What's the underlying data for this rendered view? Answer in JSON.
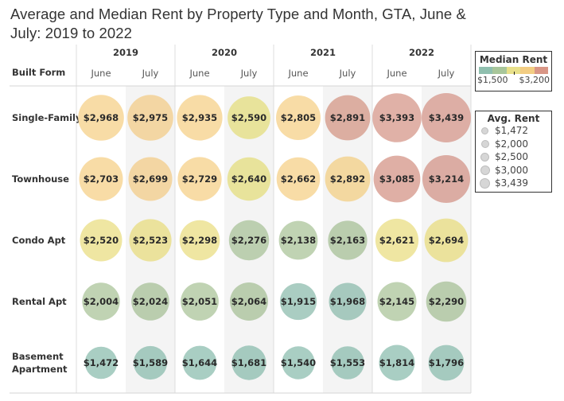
{
  "title": "Average and Median Rent by Property Type and Month, GTA, June & July: 2019 to 2022",
  "title_lines": [
    "Average and Median Rent by Property Type and Month, GTA, June &",
    "July: 2019 to 2022"
  ],
  "row_header": "Built Form",
  "legends": {
    "color": {
      "title": "Median Rent",
      "min_label": "$1,500",
      "max_label": "$3,200",
      "ramp_colors": [
        "#8fbfae",
        "#a8c69a",
        "#e8e08a",
        "#f3cd83",
        "#d99686"
      ]
    },
    "size": {
      "title": "Avg. Rent",
      "items": [
        {
          "label": "$1,472",
          "value": 1472
        },
        {
          "label": "$2,000",
          "value": 2000
        },
        {
          "label": "$2,500",
          "value": 2500
        },
        {
          "label": "$3,000",
          "value": 3000
        },
        {
          "label": "$3,439",
          "value": 3439
        }
      ]
    }
  },
  "chart_data": {
    "type": "bubble-table",
    "title": "Average and Median Rent by Property Type and Month, GTA, June & July: 2019 to 2022",
    "size_measure": "Avg. Rent",
    "color_measure": "Median Rent",
    "color_range": [
      1500,
      3200
    ],
    "years": [
      "2019",
      "2020",
      "2021",
      "2022"
    ],
    "months": [
      "June",
      "July"
    ],
    "columns": [
      {
        "year": "2019",
        "month": "June"
      },
      {
        "year": "2019",
        "month": "July"
      },
      {
        "year": "2020",
        "month": "June"
      },
      {
        "year": "2020",
        "month": "July"
      },
      {
        "year": "2021",
        "month": "June"
      },
      {
        "year": "2021",
        "month": "July"
      },
      {
        "year": "2022",
        "month": "June"
      },
      {
        "year": "2022",
        "month": "July"
      }
    ],
    "rows": [
      {
        "label": "Single-Family",
        "label_lines": [
          "Single-Family"
        ],
        "values": [
          2968,
          2975,
          2935,
          2590,
          2805,
          2891,
          3393,
          3439
        ],
        "labels": [
          "$2,968",
          "$2,975",
          "$2,935",
          "$2,590",
          "$2,805",
          "$2,891",
          "$3,393",
          "$3,439"
        ],
        "colors": [
          "#f8dca6",
          "#f3d6a3",
          "#f8dca6",
          "#e8e39b",
          "#f8dca6",
          "#dcaea1",
          "#e0b1a7",
          "#ddaea5"
        ]
      },
      {
        "label": "Townhouse",
        "label_lines": [
          "Townhouse"
        ],
        "values": [
          2703,
          2699,
          2729,
          2640,
          2662,
          2892,
          3085,
          3214
        ],
        "labels": [
          "$2,703",
          "$2,699",
          "$2,729",
          "$2,640",
          "$2,662",
          "$2,892",
          "$3,085",
          "$3,214"
        ],
        "colors": [
          "#f8dca6",
          "#f3d6a3",
          "#f8dca6",
          "#e8e39b",
          "#f8dca6",
          "#f3d8a0",
          "#dfafa5",
          "#dbaca3"
        ]
      },
      {
        "label": "Condo Apt",
        "label_lines": [
          "Condo Apt"
        ],
        "values": [
          2520,
          2523,
          2298,
          2276,
          2138,
          2163,
          2621,
          2694
        ],
        "labels": [
          "$2,520",
          "$2,523",
          "$2,298",
          "$2,276",
          "$2,138",
          "$2,163",
          "$2,621",
          "$2,694"
        ],
        "colors": [
          "#efe6a2",
          "#ebe29c",
          "#efe6a2",
          "#bccfb0",
          "#c0d3b3",
          "#bacdae",
          "#efe6a2",
          "#ebe29c"
        ]
      },
      {
        "label": "Rental Apt",
        "label_lines": [
          "Rental Apt"
        ],
        "values": [
          2004,
          2024,
          2051,
          2064,
          1915,
          1968,
          2145,
          2290
        ],
        "labels": [
          "$2,004",
          "$2,024",
          "$2,051",
          "$2,064",
          "$1,915",
          "$1,968",
          "$2,145",
          "$2,290"
        ],
        "colors": [
          "#c0d3b3",
          "#bacdae",
          "#c0d3b3",
          "#bacdae",
          "#aacdc2",
          "#a6c9be",
          "#c0d3b3",
          "#bacdae"
        ]
      },
      {
        "label": "Basement Apartment",
        "label_lines": [
          "Basement",
          "Apartment"
        ],
        "values": [
          1472,
          1589,
          1644,
          1681,
          1540,
          1553,
          1814,
          1796
        ],
        "labels": [
          "$1,472",
          "$1,589",
          "$1,644",
          "$1,681",
          "$1,540",
          "$1,553",
          "$1,814",
          "$1,796"
        ],
        "colors": [
          "#a9cec3",
          "#a5cabf",
          "#a9cec3",
          "#a5cabf",
          "#a9cec3",
          "#a5cabf",
          "#a9cec3",
          "#a5cabf"
        ]
      }
    ]
  }
}
